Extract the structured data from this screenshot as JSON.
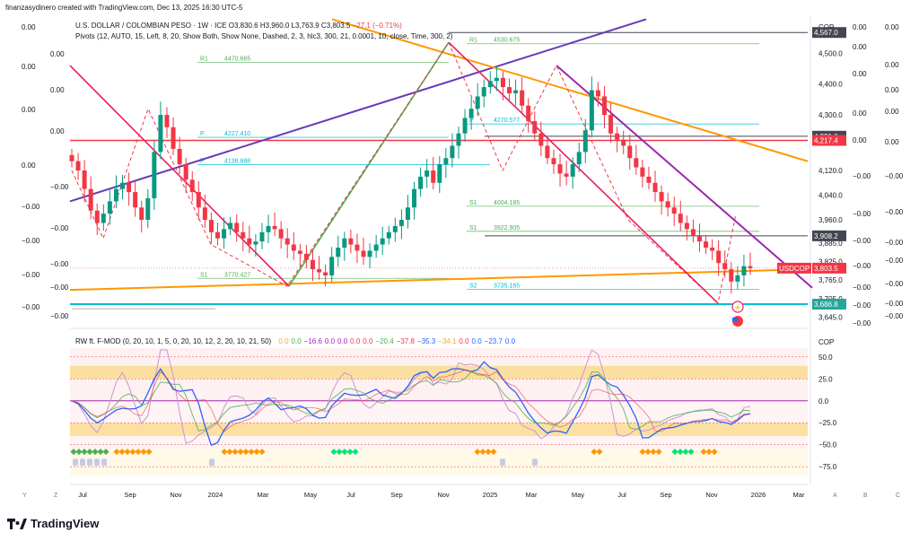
{
  "header": {
    "created_by": "finanzasydinero created with TradingView.com, Dec 13, 2025 16:30 UTC-5",
    "symbol": "U.S. DOLLAR / COLOMBIAN PESO · 1W · ICE",
    "ohlc": "O3,830.6 H3,960.0 L3,763.9 C3,803.5",
    "change": "−27.1 (−0.71%)",
    "pivots_label": "Pivots (12, AUTO, 15, Left, 8, 20, Show Both, Show None, Dashed, 2, 3, hlc3, 300, 21, 0.0001, 10, close, Time, 300, 2)"
  },
  "price_axis": {
    "unit": "COP",
    "ticks": [
      "4,500.0",
      "4,400.0",
      "4,300.0",
      "4,120.0",
      "4,040.0",
      "3,960.0",
      "3,885.0",
      "3,825.0",
      "3,765.0",
      "3,705.0",
      "3,645.0"
    ],
    "badges": [
      {
        "label": "4,567.0",
        "color": "#434651"
      },
      {
        "label": "4,231.0",
        "color": "#434651"
      },
      {
        "label": "4,217.4",
        "color": "#f23645"
      },
      {
        "label": "3,908.2",
        "color": "#434651"
      },
      {
        "label": "3,803.5",
        "color": "#f23645"
      },
      {
        "label": "3,686.8",
        "color": "#26a69a"
      }
    ],
    "symbol_badge": "USDCOP"
  },
  "left_axis_labels": [
    "0.00",
    "0.00",
    "0.00",
    "0.00",
    "0.00",
    "0.00",
    "0.00",
    "−0.00",
    "−0.00",
    "−0.00",
    "−0.00",
    "−0.00",
    "−0.00",
    "−0.00",
    "−0.00",
    "−0.00"
  ],
  "right_extra_col1": [
    "0.00",
    "0.00",
    "0.00",
    "0.00",
    "0.00",
    "−0.00",
    "−0.00",
    "−0.00",
    "−0.00",
    "−0.00",
    "−0.00",
    "−0.00",
    "−0.00",
    "−0.00"
  ],
  "right_extra_col2": [
    "0.00",
    "0.00",
    "0.00",
    "0.00",
    "0.00",
    "−0.00",
    "−0.00",
    "−0.00",
    "−0.00",
    "−0.00",
    "−0.00",
    "−0.00",
    "−0.00",
    "−0.00"
  ],
  "pivot_levels": [
    {
      "label": "R1",
      "value": "4530.675"
    },
    {
      "label": "R1",
      "value": "4470.665"
    },
    {
      "label": "P",
      "value": "4227.410"
    },
    {
      "label": "P",
      "value": "4270.577"
    },
    {
      "label": "P",
      "value": "4138.688"
    },
    {
      "label": "S1",
      "value": "4004.185"
    },
    {
      "label": "S1",
      "value": "3922.905"
    },
    {
      "label": "S1",
      "value": "3770.427"
    },
    {
      "label": "S2",
      "value": "3735.165"
    }
  ],
  "oscillator": {
    "title": "RW ft. F-MOD (0, 20, 10, 1, 5, 0, 20, 10, 12, 2, 20, 10, 21, 50)",
    "values": [
      {
        "v": "0.0",
        "c": "#f9a825"
      },
      {
        "v": "0.0",
        "c": "#4caf50"
      },
      {
        "v": "−16.6",
        "c": "#9c27b0"
      },
      {
        "v": "0.0",
        "c": "#9c27b0"
      },
      {
        "v": "0.0",
        "c": "#9c27b0"
      },
      {
        "v": "0.0",
        "c": "#f23645"
      },
      {
        "v": "0.0",
        "c": "#f23645"
      },
      {
        "v": "−20.4",
        "c": "#4caf50"
      },
      {
        "v": "−37.8",
        "c": "#f23645"
      },
      {
        "v": "−35.3",
        "c": "#2962ff"
      },
      {
        "v": "−34.1",
        "c": "#f9a825"
      },
      {
        "v": "0.0",
        "c": "#f23645"
      },
      {
        "v": "0.0",
        "c": "#2962ff"
      },
      {
        "v": "−23.7",
        "c": "#2962ff"
      },
      {
        "v": "0.0",
        "c": "#2962ff"
      }
    ],
    "unit": "COP",
    "ticks": [
      "50.0",
      "25.0",
      "0.0",
      "−25.0",
      "−50.0",
      "−75.0"
    ]
  },
  "time_axis": [
    "Jul",
    "Sep",
    "Nov",
    "2024",
    "Mar",
    "May",
    "Jul",
    "Sep",
    "Nov",
    "2025",
    "Mar",
    "May",
    "Jul",
    "Sep",
    "Nov",
    "2026",
    "Mar"
  ],
  "corner_letters": [
    "Y",
    "Z",
    "A",
    "B",
    "C"
  ],
  "brand": "TradingView",
  "chart_data": {
    "type": "candlestick",
    "title": "U.S. DOLLAR / COLOMBIAN PESO · 1W · ICE",
    "ylabel": "COP",
    "ylim": [
      3620,
      4620
    ],
    "x_range": [
      "2023-06",
      "2026-03"
    ],
    "weekly_closes_approx": [
      4150,
      4120,
      4060,
      3990,
      3950,
      3980,
      4020,
      4060,
      4080,
      4050,
      4000,
      3960,
      4030,
      4180,
      4300,
      4260,
      4190,
      4140,
      4090,
      4050,
      4000,
      3960,
      3920,
      3900,
      3930,
      3950,
      3920,
      3900,
      3880,
      3890,
      3920,
      3940,
      3930,
      3900,
      3880,
      3860,
      3850,
      3830,
      3800,
      3790,
      3780,
      3840,
      3870,
      3900,
      3880,
      3860,
      3840,
      3860,
      3880,
      3900,
      3920,
      3940,
      3960,
      4000,
      4060,
      4100,
      4120,
      4080,
      4140,
      4160,
      4200,
      4240,
      4290,
      4320,
      4360,
      4390,
      4410,
      4420,
      4390,
      4370,
      4380,
      4330,
      4280,
      4240,
      4200,
      4160,
      4140,
      4110,
      4100,
      4140,
      4180,
      4250,
      4380,
      4360,
      4300,
      4240,
      4220,
      4200,
      4160,
      4130,
      4100,
      4080,
      4050,
      4020,
      4000,
      3980,
      3950,
      3930,
      3910,
      3890,
      3870,
      3860,
      3820,
      3800,
      3760,
      3780,
      3810,
      3803.5
    ],
    "pivot_levels": {
      "R1": [
        4530.675,
        4470.665
      ],
      "P": [
        4227.41,
        4270.577,
        4138.688
      ],
      "S1": [
        4004.185,
        3922.905,
        3770.427
      ],
      "S2": [
        3735.165
      ]
    },
    "horizontal_levels": [
      4567.0,
      4231.0,
      4217.4,
      3908.2,
      3686.8
    ],
    "last_close": 3803.5,
    "oscillator_range": [
      -85,
      60
    ]
  }
}
